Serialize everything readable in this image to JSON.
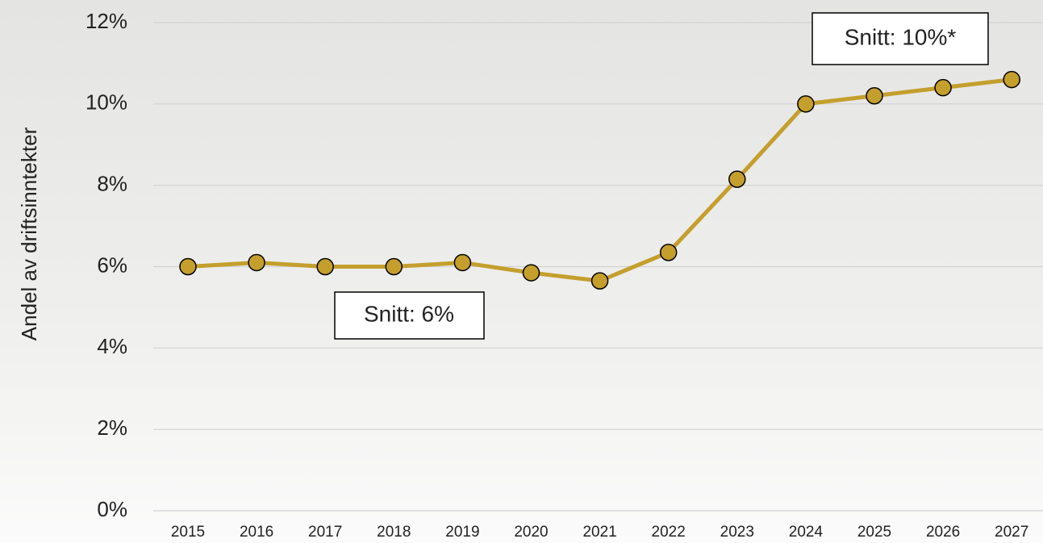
{
  "chart_data": {
    "type": "line",
    "y_label": "Andel av driftsinntekter",
    "categories": [
      "2015",
      "2016",
      "2017",
      "2018",
      "2019",
      "2020",
      "2021",
      "2022",
      "2023",
      "2024",
      "2025",
      "2026",
      "2027"
    ],
    "series": [
      {
        "color": "#c49f2c",
        "values": [
          6.0,
          6.1,
          6.0,
          6.0,
          6.1,
          5.85,
          5.65,
          6.35,
          8.15,
          10.0,
          10.2,
          10.4,
          10.6
        ]
      }
    ],
    "ylim": [
      0,
      12
    ],
    "yticks": [
      {
        "value": 0,
        "label": "0%"
      },
      {
        "value": 2,
        "label": "2%"
      },
      {
        "value": 4,
        "label": "4%"
      },
      {
        "value": 6,
        "label": "6%"
      },
      {
        "value": 8,
        "label": "8%"
      },
      {
        "value": 10,
        "label": "10%"
      },
      {
        "value": 12,
        "label": "12%"
      }
    ],
    "grid": true,
    "annotations": [
      "Snitt: 6%",
      "Snitt: 10%*"
    ]
  }
}
